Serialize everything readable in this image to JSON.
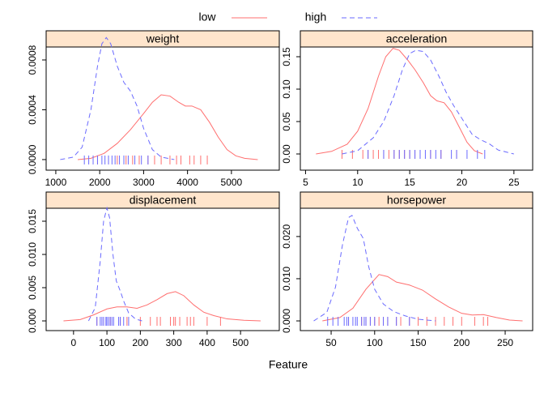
{
  "xlabel": "Feature",
  "chart_data": [
    {
      "type": "line",
      "title": "weight",
      "xlim": [
        780,
        6090
      ],
      "xticks": [
        1000,
        2000,
        3000,
        4000,
        5000
      ],
      "ylim": [
        -8.5e-05,
        0.000904
      ],
      "yticks": [
        {
          "value": 0,
          "label": "0.0000"
        },
        {
          "value": 0.0004,
          "label": "0.0004"
        },
        {
          "value": 0.0008,
          "label": "0.0008"
        }
      ],
      "series": [
        {
          "name": "low",
          "color": "#ff6f6f",
          "linestyle": "solid",
          "x": [
            1500,
            1800,
            2100,
            2400,
            2700,
            3000,
            3200,
            3400,
            3600,
            3800,
            3950,
            4100,
            4300,
            4500,
            4700,
            4900,
            5100,
            5300,
            5600
          ],
          "values": [
            0,
            1e-05,
            5e-05,
            0.00013,
            0.00024,
            0.00037,
            0.00046,
            0.00052,
            0.00051,
            0.00046,
            0.00043,
            0.00043,
            0.0004,
            0.0003,
            0.00018,
            8e-05,
            3e-05,
            1e-05,
            0
          ],
          "rug": [
            1950,
            2200,
            2400,
            2600,
            2750,
            2900,
            3100,
            3250,
            3400,
            3600,
            3750,
            3850,
            4050,
            4150,
            4300,
            4450
          ]
        },
        {
          "name": "high",
          "color": "#6a6aff",
          "linestyle": "dashed",
          "x": [
            1100,
            1400,
            1600,
            1800,
            1950,
            2050,
            2150,
            2250,
            2400,
            2550,
            2700,
            2850,
            3000,
            3200,
            3400,
            3700
          ],
          "values": [
            0,
            2e-05,
            0.0001,
            0.0004,
            0.00075,
            0.00093,
            0.00098,
            0.00093,
            0.00075,
            0.00062,
            0.00055,
            0.00043,
            0.00025,
            8e-05,
            2e-05,
            0
          ],
          "rug": [
            1650,
            1750,
            1850,
            1950,
            2050,
            2120,
            2200,
            2280,
            2350,
            2450,
            2550,
            2650,
            2800,
            2950,
            3100
          ]
        }
      ]
    },
    {
      "type": "line",
      "title": "acceleration",
      "xlim": [
        4.5,
        26.8
      ],
      "xticks": [
        5,
        10,
        15,
        20,
        25
      ],
      "ylim": [
        -0.025,
        0.165
      ],
      "yticks": [
        {
          "value": 0,
          "label": "0.00"
        },
        0.05,
        {
          "value": 0.1,
          "label": "0.10"
        },
        0.15
      ],
      "series": [
        {
          "name": "low",
          "color": "#ff6f6f",
          "linestyle": "solid",
          "x": [
            6,
            7.5,
            9,
            10,
            11,
            12,
            12.7,
            13.4,
            14,
            14.8,
            15.5,
            16.3,
            17,
            17.6,
            18.3,
            19,
            19.8,
            20.5,
            21.2,
            22
          ],
          "values": [
            0,
            0.004,
            0.015,
            0.035,
            0.07,
            0.12,
            0.15,
            0.163,
            0.16,
            0.145,
            0.13,
            0.11,
            0.09,
            0.082,
            0.079,
            0.065,
            0.04,
            0.018,
            0.005,
            0
          ],
          "rug": [
            8.5,
            9.5,
            10.5,
            11,
            11.5,
            12,
            12.5,
            13,
            13.5,
            14,
            14.5,
            15,
            15.5,
            16,
            17,
            18,
            19.5
          ]
        },
        {
          "name": "high",
          "color": "#6a6aff",
          "linestyle": "dashed",
          "x": [
            8.5,
            10,
            11.5,
            12.5,
            13.5,
            14.3,
            15,
            15.6,
            16.3,
            17,
            17.8,
            18.5,
            19.2,
            20,
            21,
            21.8,
            22.6,
            23.5,
            25
          ],
          "values": [
            0,
            0.005,
            0.025,
            0.05,
            0.09,
            0.13,
            0.155,
            0.16,
            0.158,
            0.145,
            0.12,
            0.095,
            0.075,
            0.055,
            0.03,
            0.022,
            0.016,
            0.006,
            0
          ],
          "rug": [
            11,
            12.5,
            13.5,
            14,
            14.5,
            15,
            15.5,
            16,
            16.5,
            17,
            17.5,
            18,
            19,
            19.5,
            20.5,
            21.5,
            22.2
          ]
        }
      ]
    },
    {
      "type": "line",
      "title": "displacement",
      "xlim": [
        -82,
        616
      ],
      "xticks": [
        0,
        100,
        200,
        300,
        400,
        500
      ],
      "ylim": [
        -0.00146,
        0.01695
      ],
      "yticks": [
        {
          "value": 0,
          "label": "0.000"
        },
        0.005,
        {
          "value": 0.01,
          "label": "0.010"
        },
        0.015
      ],
      "series": [
        {
          "name": "low",
          "color": "#ff6f6f",
          "linestyle": "solid",
          "x": [
            -30,
            20,
            60,
            100,
            130,
            160,
            190,
            220,
            250,
            280,
            305,
            330,
            360,
            390,
            420,
            460,
            510,
            560
          ],
          "values": [
            0,
            0.0002,
            0.0009,
            0.0018,
            0.0021,
            0.0021,
            0.0019,
            0.0024,
            0.0032,
            0.0041,
            0.0044,
            0.0038,
            0.0024,
            0.0013,
            0.0008,
            0.0003,
            0.0001,
            0
          ],
          "rug": [
            70,
            90,
            110,
            140,
            160,
            200,
            230,
            250,
            260,
            290,
            300,
            305,
            318,
            340,
            350,
            360,
            400,
            440
          ]
        },
        {
          "name": "high",
          "color": "#6a6aff",
          "linestyle": "dashed",
          "x": [
            45,
            65,
            80,
            90,
            100,
            108,
            118,
            128,
            140,
            150,
            165,
            185,
            205
          ],
          "values": [
            0,
            0.002,
            0.009,
            0.015,
            0.017,
            0.0155,
            0.01,
            0.006,
            0.0045,
            0.003,
            0.0012,
            0.0003,
            0
          ],
          "rug": [
            70,
            80,
            85,
            90,
            97,
            100,
            105,
            110,
            115,
            120,
            135,
            140,
            150,
            165
          ]
        }
      ]
    },
    {
      "type": "line",
      "title": "horsepower",
      "xlim": [
        14.6,
        281.6
      ],
      "xticks": [
        50,
        100,
        150,
        200,
        250
      ],
      "ylim": [
        -0.0023,
        0.0267
      ],
      "yticks": [
        {
          "value": 0,
          "label": "0.000"
        },
        {
          "value": 0.01,
          "label": "0.010"
        },
        {
          "value": 0.02,
          "label": "0.020"
        }
      ],
      "series": [
        {
          "name": "low",
          "color": "#ff6f6f",
          "linestyle": "solid",
          "x": [
            40,
            60,
            75,
            90,
            105,
            115,
            125,
            140,
            155,
            170,
            185,
            200,
            212,
            225,
            240,
            255,
            270
          ],
          "values": [
            0,
            0.0008,
            0.003,
            0.0075,
            0.011,
            0.0105,
            0.0092,
            0.0085,
            0.0073,
            0.0052,
            0.0033,
            0.0018,
            0.0014,
            0.0015,
            0.0008,
            0.0002,
            0
          ],
          "rug": [
            70,
            85,
            90,
            95,
            100,
            105,
            110,
            115,
            125,
            130,
            140,
            150,
            160,
            170,
            180,
            190,
            200,
            215,
            225,
            230
          ]
        },
        {
          "name": "high",
          "color": "#6a6aff",
          "linestyle": "dashed",
          "x": [
            30,
            45,
            55,
            63,
            70,
            74,
            80,
            87,
            93,
            100,
            110,
            122,
            135,
            150,
            170
          ],
          "values": [
            0,
            0.002,
            0.008,
            0.018,
            0.0245,
            0.025,
            0.022,
            0.0195,
            0.013,
            0.0075,
            0.004,
            0.0022,
            0.0012,
            0.0004,
            0
          ],
          "rug": [
            46,
            52,
            58,
            65,
            68,
            70,
            75,
            78,
            80,
            85,
            88,
            90,
            95,
            100,
            110,
            115,
            125,
            140
          ]
        }
      ]
    }
  ]
}
